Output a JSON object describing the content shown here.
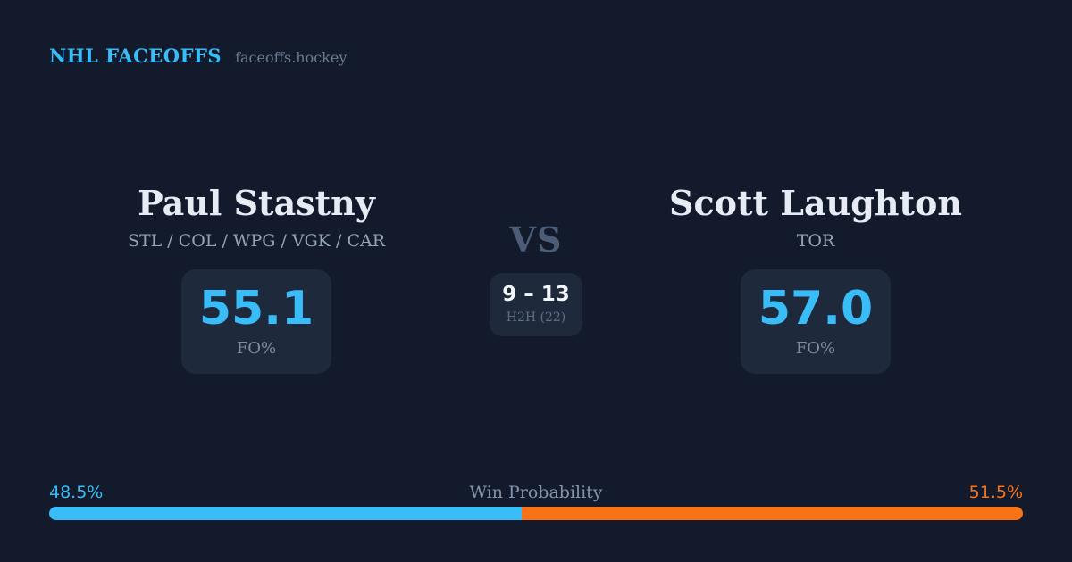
{
  "header": {
    "brand": "NHL FACEOFFS",
    "site": "faceoffs.hockey"
  },
  "matchup": {
    "vs_label": "VS",
    "h2h": {
      "score": "9 – 13",
      "label": "H2H (22)"
    },
    "players": {
      "left": {
        "name": "Paul Stastny",
        "teams": "STL / COL / WPG / VGK / CAR",
        "stat_value": "55.1",
        "stat_label": "FO%"
      },
      "right": {
        "name": "Scott Laughton",
        "teams": "TOR",
        "stat_value": "57.0",
        "stat_label": "FO%"
      }
    }
  },
  "win_probability": {
    "label": "Win Probability",
    "left": {
      "pct_label": "48.5%",
      "value": 48.5,
      "color": "#38bdf8"
    },
    "right": {
      "pct_label": "51.5%",
      "value": 51.5,
      "color": "#f97316"
    }
  },
  "colors": {
    "background": "#121a2b",
    "card": "#1e293b",
    "accent_blue": "#38bdf8",
    "accent_orange": "#f97316",
    "name_text": "#e7ecf4",
    "muted_text": "#7e8ba0"
  }
}
